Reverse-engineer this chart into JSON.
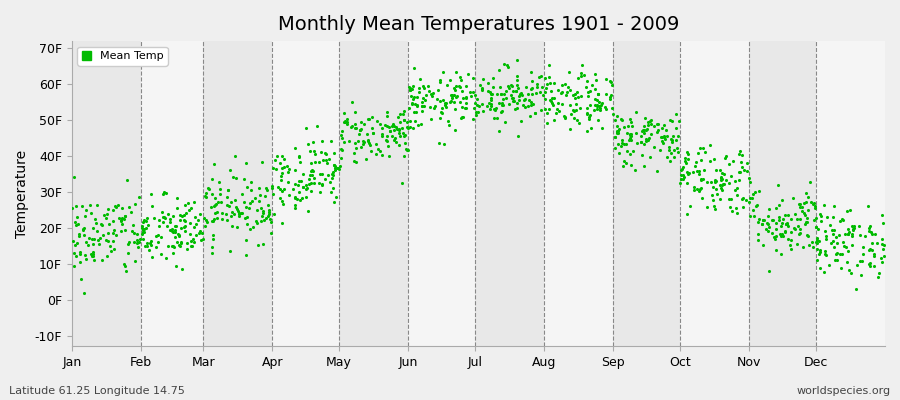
{
  "title": "Monthly Mean Temperatures 1901 - 2009",
  "ylabel": "Temperature",
  "bottom_left_label": "Latitude 61.25 Longitude 14.75",
  "bottom_right_label": "worldspecies.org",
  "legend_label": "Mean Temp",
  "dot_color": "#00BB00",
  "background_color": "#EFEFEF",
  "band_color_odd": "#E8E8E8",
  "band_color_even": "#F5F5F5",
  "ylim": [
    -13,
    72
  ],
  "yticks": [
    -10,
    0,
    10,
    20,
    30,
    40,
    50,
    60,
    70
  ],
  "ytick_labels": [
    "-10F",
    "0F",
    "10F",
    "20F",
    "30F",
    "40F",
    "50F",
    "60F",
    "70F"
  ],
  "months": [
    "Jan",
    "Feb",
    "Mar",
    "Apr",
    "May",
    "Jun",
    "Jul",
    "Aug",
    "Sep",
    "Oct",
    "Nov",
    "Dec"
  ],
  "month_days": [
    31,
    28,
    31,
    30,
    31,
    30,
    31,
    31,
    30,
    31,
    30,
    31
  ],
  "month_means_F": [
    18,
    19,
    26,
    35,
    46,
    55,
    57,
    55,
    45,
    34,
    22,
    16
  ],
  "month_stds_F": [
    6,
    5,
    5,
    5,
    4,
    4,
    4,
    4,
    4,
    5,
    5,
    5
  ],
  "n_years": 109,
  "seed": 42,
  "dot_size": 5
}
